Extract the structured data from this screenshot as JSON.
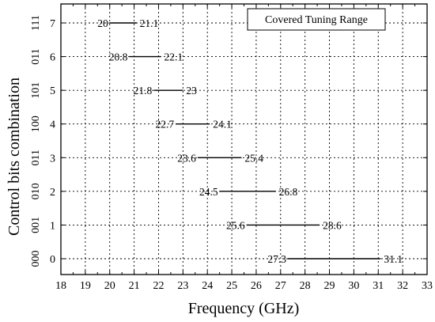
{
  "chart_data": {
    "type": "range",
    "xlabel": "Frequency (GHz)",
    "ylabel": "Control bits combination",
    "xlim": [
      18,
      33
    ],
    "ylim": [
      -0.5,
      7.5
    ],
    "xticks": [
      18,
      19,
      20,
      21,
      22,
      23,
      24,
      25,
      26,
      27,
      28,
      29,
      30,
      31,
      32,
      33
    ],
    "yticks": [
      0,
      1,
      2,
      3,
      4,
      5,
      6,
      7
    ],
    "bit_labels": [
      "000",
      "001",
      "010",
      "011",
      "100",
      "101",
      "011",
      "111"
    ],
    "grid": "dotted vertical and horizontal at major ticks",
    "legend": {
      "label": "Covered Tuning Range",
      "placement": "top-right"
    },
    "ranges": [
      {
        "y": 0,
        "start": 27.3,
        "end": 31.1,
        "start_label": "27.3",
        "end_label": "31.1"
      },
      {
        "y": 1,
        "start": 25.6,
        "end": 28.6,
        "start_label": "25.6",
        "end_label": "28.6"
      },
      {
        "y": 2,
        "start": 24.5,
        "end": 26.8,
        "start_label": "24.5",
        "end_label": "26.8"
      },
      {
        "y": 3,
        "start": 23.6,
        "end": 25.4,
        "start_label": "23.6",
        "end_label": "25.4"
      },
      {
        "y": 4,
        "start": 22.7,
        "end": 24.1,
        "start_label": "22.7",
        "end_label": "24.1"
      },
      {
        "y": 5,
        "start": 21.8,
        "end": 23,
        "start_label": "21.8",
        "end_label": "23"
      },
      {
        "y": 6,
        "start": 20.8,
        "end": 22.1,
        "start_label": "20.8",
        "end_label": "22.1"
      },
      {
        "y": 7,
        "start": 20,
        "end": 21.1,
        "start_label": "20",
        "end_label": "21.1"
      }
    ]
  }
}
